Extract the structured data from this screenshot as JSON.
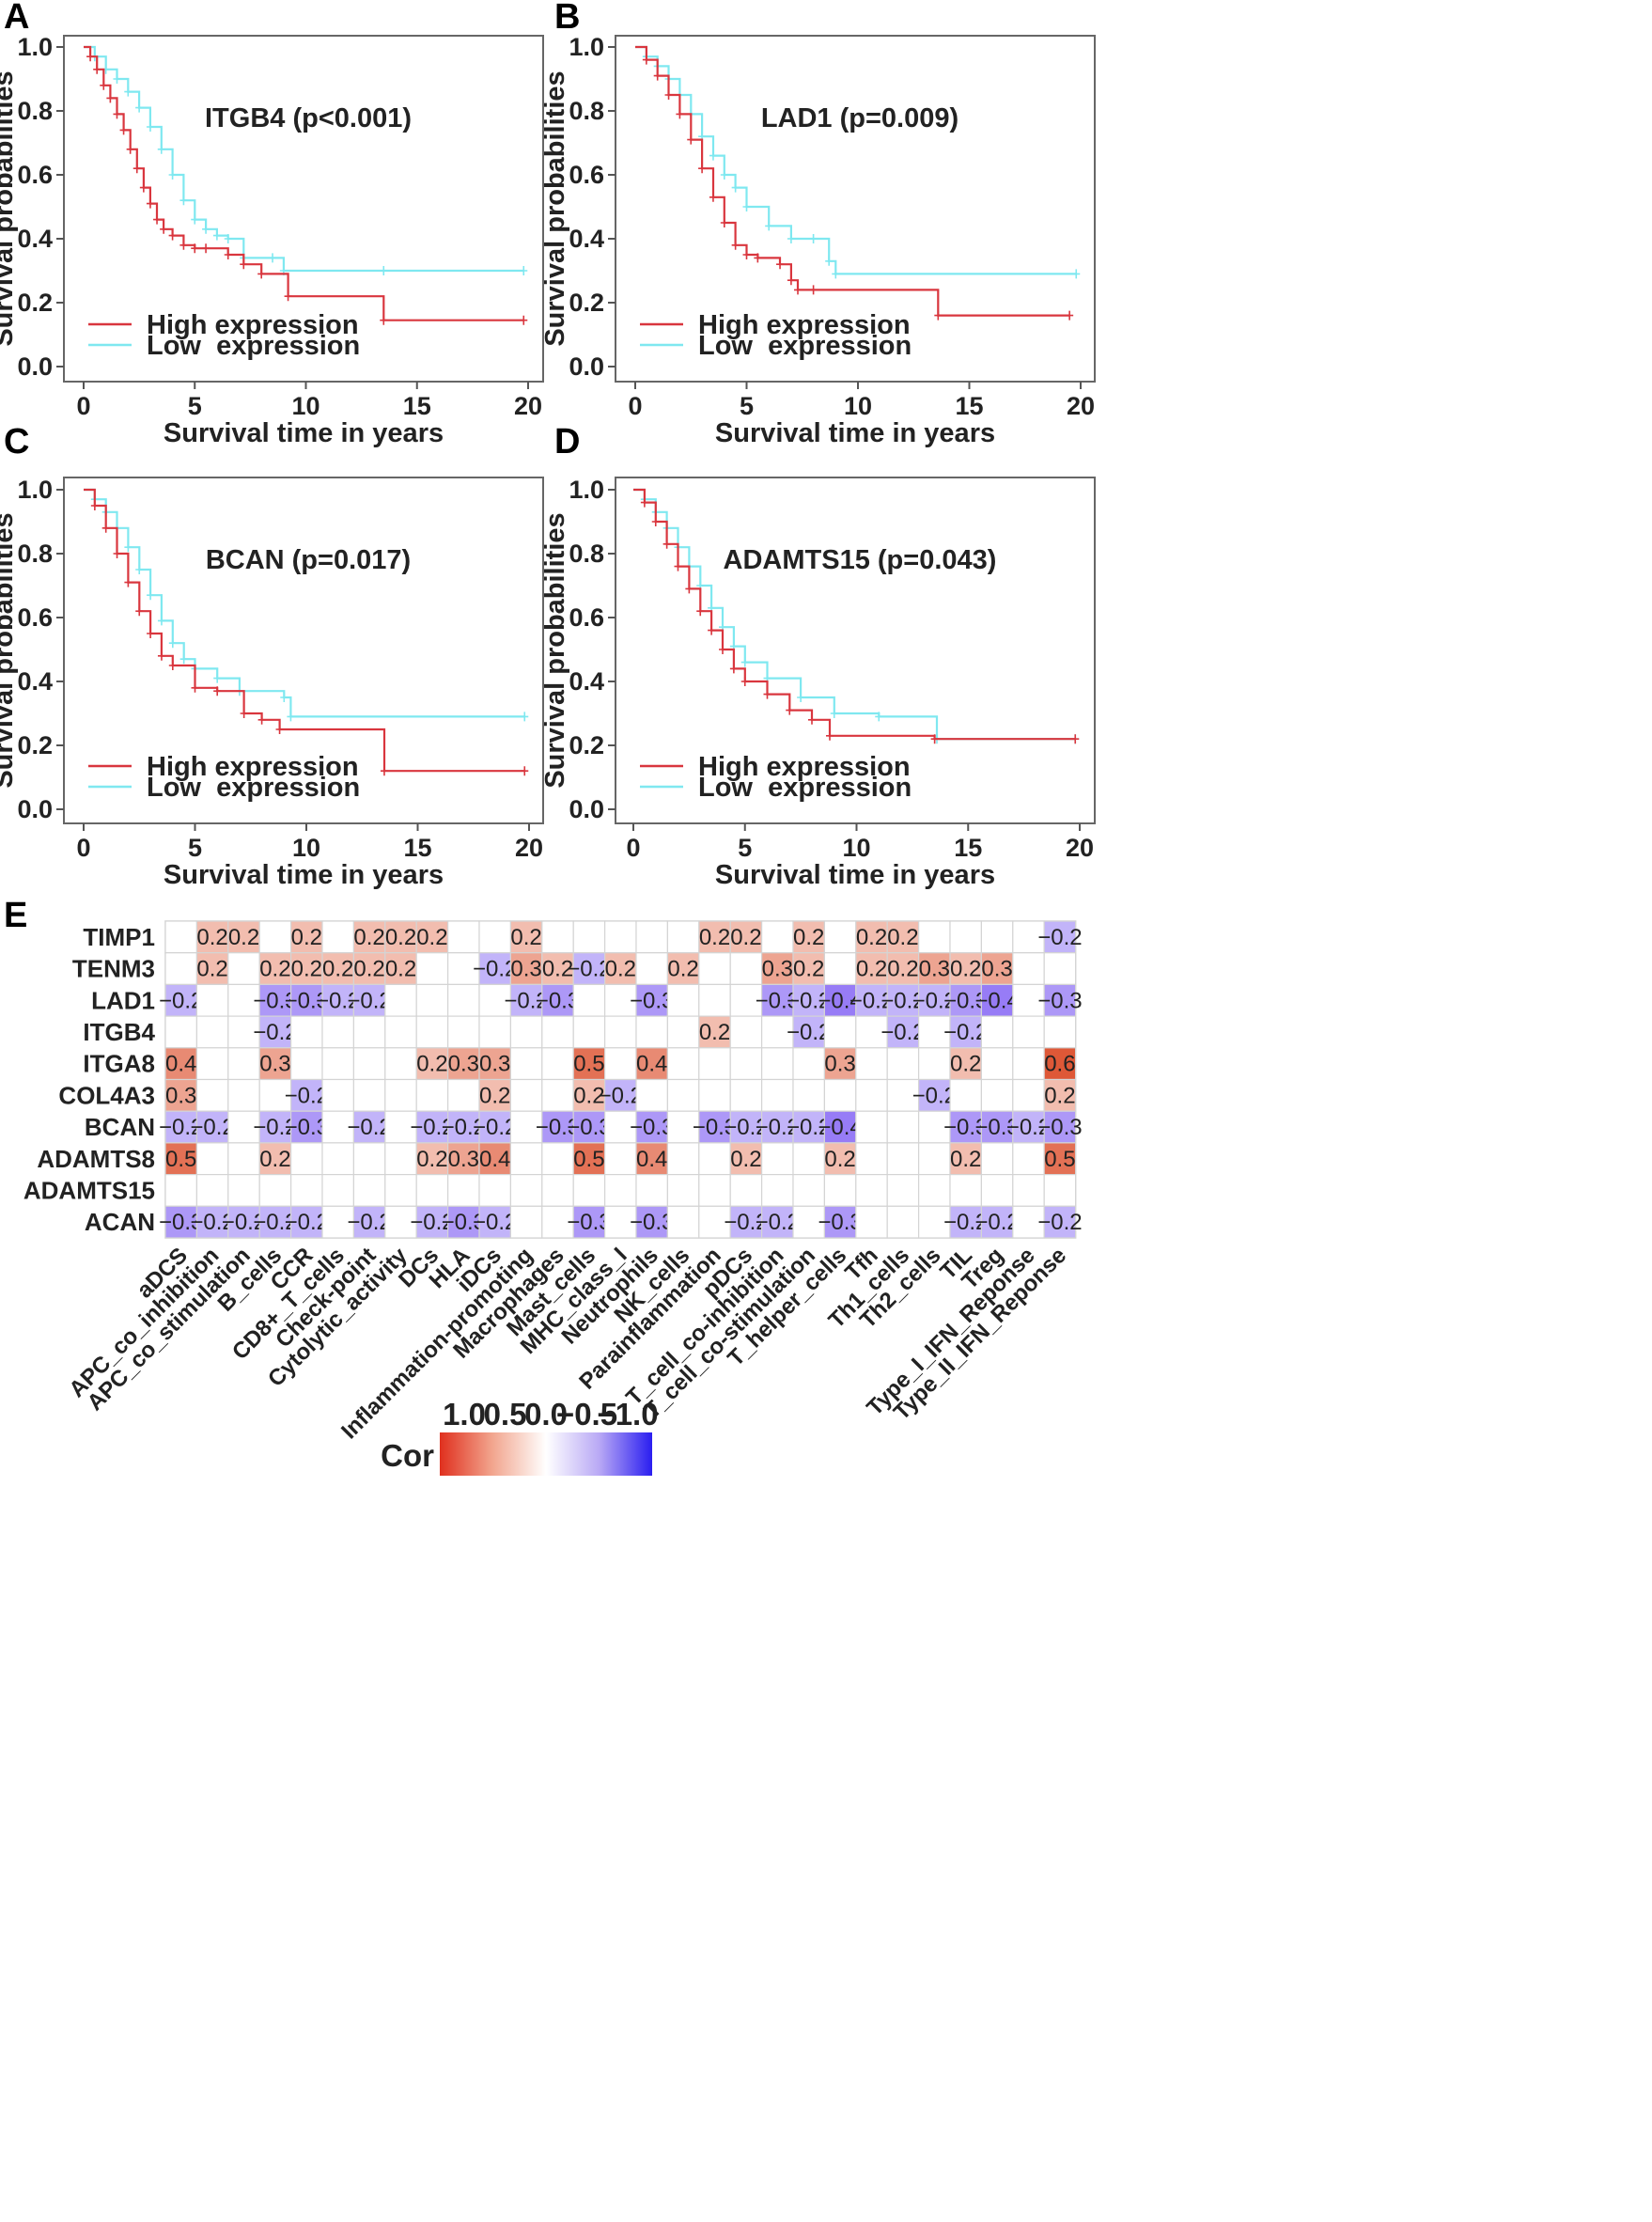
{
  "chart_data": [
    {
      "type": "line",
      "panel": "A",
      "title": "ITGB4 (p<0.001)",
      "xlabel": "Survival time in years",
      "ylabel": "Survival probabilities",
      "xlim": [
        0,
        20
      ],
      "ylim": [
        0,
        1
      ],
      "xticks": [
        "0",
        "5",
        "10",
        "15",
        "20"
      ],
      "yticks": [
        "0.0",
        "0.2",
        "0.4",
        "0.6",
        "0.8",
        "1.0"
      ],
      "legend": [
        "High expression",
        "Low  expression"
      ],
      "colors": {
        "high": "#d9363e",
        "low": "#7fe8f0"
      },
      "series": [
        {
          "name": "High expression",
          "x": [
            0,
            0.3,
            0.6,
            0.9,
            1.2,
            1.5,
            1.8,
            2.1,
            2.4,
            2.7,
            3.0,
            3.3,
            3.6,
            4.0,
            4.5,
            5.0,
            5.5,
            6.5,
            7.2,
            8.0,
            9.2,
            13.5,
            19.8
          ],
          "y": [
            1.0,
            0.97,
            0.93,
            0.88,
            0.84,
            0.79,
            0.74,
            0.68,
            0.62,
            0.56,
            0.51,
            0.46,
            0.43,
            0.41,
            0.38,
            0.37,
            0.37,
            0.35,
            0.32,
            0.29,
            0.22,
            0.145,
            0.145
          ]
        },
        {
          "name": "Low expression",
          "x": [
            0,
            0.5,
            1.0,
            1.5,
            2.0,
            2.5,
            3.0,
            3.5,
            4.0,
            4.5,
            5.0,
            5.5,
            6.0,
            6.5,
            7.2,
            8.5,
            9.0,
            13.5,
            19.8
          ],
          "y": [
            1.0,
            0.97,
            0.93,
            0.9,
            0.86,
            0.81,
            0.75,
            0.68,
            0.6,
            0.52,
            0.46,
            0.43,
            0.41,
            0.4,
            0.34,
            0.34,
            0.3,
            0.3,
            0.3
          ]
        }
      ]
    },
    {
      "type": "line",
      "panel": "B",
      "title": "LAD1 (p=0.009)",
      "xlabel": "Survival time in years",
      "ylabel": "Survival probabilities",
      "xlim": [
        0,
        20
      ],
      "ylim": [
        0,
        1
      ],
      "xticks": [
        "0",
        "5",
        "10",
        "15",
        "20"
      ],
      "yticks": [
        "0.0",
        "0.2",
        "0.4",
        "0.6",
        "0.8",
        "1.0"
      ],
      "legend": [
        "High expression",
        "Low  expression"
      ],
      "colors": {
        "high": "#d9363e",
        "low": "#7fe8f0"
      },
      "series": [
        {
          "name": "High expression",
          "x": [
            0,
            0.5,
            1.0,
            1.5,
            2.0,
            2.5,
            3.0,
            3.5,
            4.0,
            4.5,
            5.0,
            5.5,
            6.5,
            7.0,
            7.3,
            8.0,
            13.6,
            19.5
          ],
          "y": [
            1.0,
            0.96,
            0.91,
            0.85,
            0.79,
            0.71,
            0.62,
            0.53,
            0.45,
            0.38,
            0.35,
            0.34,
            0.32,
            0.27,
            0.24,
            0.24,
            0.16,
            0.16
          ]
        },
        {
          "name": "Low expression",
          "x": [
            0,
            0.5,
            1.0,
            1.5,
            2.0,
            2.5,
            3.0,
            3.5,
            4.0,
            4.5,
            5.0,
            6.0,
            7.0,
            8.0,
            8.7,
            9.0,
            19.8
          ],
          "y": [
            1.0,
            0.97,
            0.94,
            0.9,
            0.85,
            0.79,
            0.72,
            0.66,
            0.6,
            0.56,
            0.5,
            0.44,
            0.4,
            0.4,
            0.33,
            0.29,
            0.29
          ]
        }
      ]
    },
    {
      "type": "line",
      "panel": "C",
      "title": "BCAN (p=0.017)",
      "xlabel": "Survival time in years",
      "ylabel": "Survival probabilities",
      "xlim": [
        0,
        20
      ],
      "ylim": [
        0,
        1
      ],
      "xticks": [
        "0",
        "5",
        "10",
        "15",
        "20"
      ],
      "yticks": [
        "0.0",
        "0.2",
        "0.4",
        "0.6",
        "0.8",
        "1.0"
      ],
      "legend": [
        "High expression",
        "Low  expression"
      ],
      "colors": {
        "high": "#d9363e",
        "low": "#7fe8f0"
      },
      "series": [
        {
          "name": "High expression",
          "x": [
            0,
            0.5,
            1.0,
            1.5,
            2.0,
            2.5,
            3.0,
            3.5,
            4.0,
            5.0,
            6.0,
            7.2,
            8.0,
            8.8,
            13.5,
            19.8
          ],
          "y": [
            1.0,
            0.95,
            0.88,
            0.8,
            0.71,
            0.62,
            0.55,
            0.48,
            0.45,
            0.38,
            0.37,
            0.3,
            0.28,
            0.25,
            0.12,
            0.12
          ]
        },
        {
          "name": "Low expression",
          "x": [
            0,
            0.5,
            1.0,
            1.5,
            2.0,
            2.5,
            3.0,
            3.5,
            4.0,
            4.5,
            5.0,
            6.0,
            7.0,
            9.0,
            9.3,
            19.8
          ],
          "y": [
            1.0,
            0.97,
            0.93,
            0.88,
            0.82,
            0.75,
            0.67,
            0.59,
            0.52,
            0.47,
            0.44,
            0.41,
            0.37,
            0.35,
            0.29,
            0.29
          ]
        }
      ]
    },
    {
      "type": "line",
      "panel": "D",
      "title": "ADAMTS15 (p=0.043)",
      "xlabel": "Survival time in years",
      "ylabel": "Survival probabilities",
      "xlim": [
        0,
        20
      ],
      "ylim": [
        0,
        1
      ],
      "xticks": [
        "0",
        "5",
        "10",
        "15",
        "20"
      ],
      "yticks": [
        "0.0",
        "0.2",
        "0.4",
        "0.6",
        "0.8",
        "1.0"
      ],
      "legend": [
        "High expression",
        "Low  expression"
      ],
      "colors": {
        "high": "#d9363e",
        "low": "#7fe8f0"
      },
      "series": [
        {
          "name": "High expression",
          "x": [
            0,
            0.5,
            1.0,
            1.5,
            2.0,
            2.5,
            3.0,
            3.5,
            4.0,
            4.5,
            5.0,
            6.0,
            7.0,
            8.0,
            8.8,
            13.5,
            19.8
          ],
          "y": [
            1.0,
            0.96,
            0.9,
            0.83,
            0.76,
            0.69,
            0.62,
            0.56,
            0.5,
            0.44,
            0.4,
            0.36,
            0.31,
            0.28,
            0.23,
            0.22,
            0.22
          ]
        },
        {
          "name": "Low expression",
          "x": [
            0,
            0.5,
            1.0,
            1.5,
            2.0,
            2.5,
            3.0,
            3.5,
            4.0,
            4.5,
            5.0,
            6.0,
            7.5,
            9.0,
            11.0,
            13.6,
            19.8
          ],
          "y": [
            1.0,
            0.97,
            0.93,
            0.88,
            0.82,
            0.76,
            0.7,
            0.63,
            0.57,
            0.51,
            0.46,
            0.41,
            0.35,
            0.3,
            0.29,
            0.22,
            0.22
          ]
        }
      ]
    },
    {
      "type": "heatmap",
      "panel": "E",
      "legend_title": "Cor",
      "colorbar_ticks": [
        "1.0",
        "0.5",
        "0.0",
        "-0.5",
        "-1.0"
      ],
      "rows": [
        "TIMP1",
        "TENM3",
        "LAD1",
        "ITGB4",
        "ITGA8",
        "COL4A3",
        "BCAN",
        "ADAMTS8",
        "ADAMTS15",
        "ACAN"
      ],
      "columns": [
        "aDCS",
        "APC_co_inhibition",
        "APC_co_stimulation",
        "B_cells",
        "CCR",
        "CD8+_T_cells",
        "Check-point",
        "Cytolytic_activity",
        "DCs",
        "HLA",
        "iDCs",
        "Inflammation-promoting",
        "Macrophages",
        "Mast_cells",
        "MHC_class_I",
        "Neutrophils",
        "NK_cells",
        "Parainflammation",
        "pDCs",
        "T_cell_co-inhibition",
        "T_cell_co-stimulation",
        "T_helper_cells",
        "Tfh",
        "Th1_cells",
        "Th2_cells",
        "TIL",
        "Treg",
        "Type_I_IFN_Reponse",
        "Type_II_IFN_Reponse"
      ],
      "values": [
        [
          null,
          0.2,
          0.2,
          null,
          0.2,
          null,
          0.2,
          0.2,
          0.2,
          null,
          null,
          0.2,
          null,
          null,
          null,
          null,
          null,
          0.2,
          0.2,
          null,
          0.2,
          null,
          0.2,
          0.2,
          null,
          null,
          null,
          null,
          -0.2
        ],
        [
          null,
          0.2,
          null,
          0.2,
          0.2,
          0.2,
          0.2,
          0.2,
          null,
          null,
          -0.2,
          0.3,
          0.2,
          -0.2,
          0.2,
          null,
          0.2,
          null,
          null,
          0.3,
          0.2,
          null,
          0.2,
          0.2,
          0.3,
          0.2,
          0.3,
          null,
          null
        ],
        [
          -0.2,
          null,
          null,
          -0.3,
          -0.3,
          -0.2,
          -0.2,
          null,
          null,
          null,
          null,
          -0.2,
          -0.3,
          null,
          null,
          -0.3,
          null,
          null,
          null,
          -0.3,
          -0.2,
          -0.4,
          -0.2,
          -0.2,
          -0.2,
          -0.3,
          -0.4,
          null,
          -0.3
        ],
        [
          null,
          null,
          null,
          -0.2,
          null,
          null,
          null,
          null,
          null,
          null,
          null,
          null,
          null,
          null,
          null,
          null,
          null,
          0.2,
          null,
          null,
          -0.2,
          null,
          null,
          -0.2,
          null,
          -0.2,
          null,
          null,
          null
        ],
        [
          0.4,
          null,
          null,
          0.3,
          null,
          null,
          null,
          null,
          0.2,
          0.3,
          0.3,
          null,
          null,
          0.5,
          null,
          0.4,
          null,
          null,
          null,
          null,
          null,
          0.3,
          null,
          null,
          null,
          0.2,
          null,
          null,
          0.6
        ],
        [
          0.3,
          null,
          null,
          null,
          -0.2,
          null,
          null,
          null,
          null,
          null,
          0.2,
          null,
          null,
          0.2,
          -0.2,
          null,
          null,
          null,
          null,
          null,
          null,
          null,
          null,
          null,
          -0.2,
          null,
          null,
          null,
          0.2
        ],
        [
          -0.2,
          -0.2,
          null,
          -0.2,
          -0.3,
          null,
          -0.2,
          null,
          -0.2,
          -0.2,
          -0.2,
          null,
          -0.3,
          -0.3,
          null,
          -0.3,
          null,
          -0.3,
          -0.2,
          -0.2,
          -0.2,
          -0.4,
          null,
          null,
          null,
          -0.3,
          -0.3,
          -0.2,
          -0.3
        ],
        [
          0.5,
          null,
          null,
          0.2,
          null,
          null,
          null,
          null,
          0.2,
          0.3,
          0.4,
          null,
          null,
          0.5,
          null,
          0.4,
          null,
          null,
          0.2,
          null,
          null,
          0.2,
          null,
          null,
          null,
          0.2,
          null,
          null,
          0.5
        ],
        [
          null,
          null,
          null,
          null,
          null,
          null,
          null,
          null,
          null,
          null,
          null,
          null,
          null,
          null,
          null,
          null,
          null,
          null,
          null,
          null,
          null,
          null,
          null,
          null,
          null,
          null,
          null,
          null,
          null
        ],
        [
          -0.3,
          -0.2,
          -0.2,
          -0.2,
          -0.2,
          null,
          -0.2,
          null,
          -0.2,
          -0.3,
          -0.2,
          null,
          null,
          -0.3,
          null,
          -0.3,
          null,
          null,
          -0.2,
          -0.2,
          null,
          -0.3,
          null,
          null,
          null,
          -0.2,
          -0.2,
          null,
          -0.2
        ]
      ]
    }
  ]
}
